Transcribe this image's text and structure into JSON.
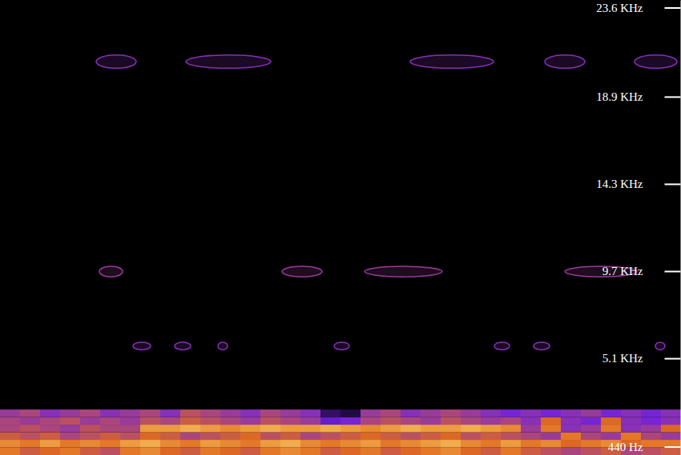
{
  "chart_data": {
    "type": "heatmap",
    "xlim": [
      0,
      850
    ],
    "ylim": [
      0,
      24000
    ],
    "yticks": [
      {
        "value": 23600,
        "label": "23.6 KHz"
      },
      {
        "value": 18900,
        "label": "18.9 KHz"
      },
      {
        "value": 14300,
        "label": "14.3 KHz"
      },
      {
        "value": 9700,
        "label": "9.7 KHz"
      },
      {
        "value": 5100,
        "label": "5.1 KHz"
      },
      {
        "value": 440,
        "label": "440 Hz"
      }
    ],
    "tick_labels": "y",
    "zlim": [
      0,
      1
    ],
    "xbins": [
      0,
      25,
      50,
      75,
      100,
      125,
      150,
      175,
      200,
      225,
      250,
      275,
      300,
      325,
      350,
      375,
      400,
      425,
      450,
      475,
      500,
      525,
      550,
      575,
      600,
      625,
      650,
      675,
      700,
      725,
      750,
      775,
      800,
      825,
      850
    ],
    "ybins": [
      0,
      400,
      800,
      1200,
      1600,
      2000,
      2400
    ],
    "cells": [
      [
        0.7,
        0.6,
        0.65,
        0.7,
        0.6,
        0.55,
        0.7,
        0.75,
        0.65,
        0.6,
        0.7,
        0.65,
        0.6,
        0.7,
        0.75,
        0.7,
        0.6,
        0.65,
        0.7,
        0.6,
        0.65,
        0.7,
        0.75,
        0.65,
        0.6,
        0.7,
        0.6,
        0.55,
        0.5,
        0.55,
        0.6,
        0.5,
        0.55,
        0.6
      ],
      [
        0.75,
        0.7,
        0.8,
        0.7,
        0.75,
        0.7,
        0.8,
        0.85,
        0.75,
        0.7,
        0.8,
        0.75,
        0.7,
        0.8,
        0.85,
        0.75,
        0.7,
        0.75,
        0.8,
        0.7,
        0.75,
        0.8,
        0.85,
        0.75,
        0.7,
        0.8,
        0.7,
        0.75,
        0.65,
        0.7,
        0.75,
        0.65,
        0.7,
        0.7
      ],
      [
        0.6,
        0.55,
        0.6,
        0.5,
        0.55,
        0.6,
        0.55,
        0.65,
        0.6,
        0.5,
        0.55,
        0.6,
        0.65,
        0.55,
        0.6,
        0.5,
        0.55,
        0.6,
        0.65,
        0.6,
        0.55,
        0.6,
        0.65,
        0.55,
        0.6,
        0.55,
        0.5,
        0.45,
        0.7,
        0.5,
        0.45,
        0.7,
        0.5,
        0.45
      ],
      [
        0.5,
        0.55,
        0.5,
        0.45,
        0.55,
        0.5,
        0.5,
        0.8,
        0.8,
        0.85,
        0.8,
        0.75,
        0.8,
        0.85,
        0.8,
        0.8,
        0.85,
        0.8,
        0.75,
        0.8,
        0.85,
        0.8,
        0.8,
        0.85,
        0.8,
        0.75,
        0.45,
        0.7,
        0.4,
        0.45,
        0.7,
        0.4,
        0.45,
        0.65
      ],
      [
        0.5,
        0.45,
        0.5,
        0.55,
        0.45,
        0.5,
        0.45,
        0.55,
        0.5,
        0.6,
        0.55,
        0.5,
        0.45,
        0.55,
        0.5,
        0.45,
        0.3,
        0.35,
        0.5,
        0.55,
        0.5,
        0.45,
        0.55,
        0.5,
        0.45,
        0.5,
        0.4,
        0.65,
        0.4,
        0.35,
        0.65,
        0.4,
        0.35,
        0.4
      ],
      [
        0.45,
        0.5,
        0.4,
        0.45,
        0.5,
        0.4,
        0.45,
        0.5,
        0.4,
        0.55,
        0.5,
        0.45,
        0.4,
        0.5,
        0.45,
        0.4,
        0.15,
        0.1,
        0.45,
        0.5,
        0.4,
        0.45,
        0.5,
        0.45,
        0.4,
        0.35,
        0.4,
        0.35,
        0.4,
        0.45,
        0.35,
        0.4,
        0.35,
        0.4
      ]
    ],
    "events": [
      {
        "t0": 120,
        "t1": 170,
        "f0": 20400,
        "f1": 21100,
        "level": 0.4
      },
      {
        "t0": 232,
        "t1": 338,
        "f0": 20400,
        "f1": 21100,
        "level": 0.4
      },
      {
        "t0": 512,
        "t1": 616,
        "f0": 20400,
        "f1": 21100,
        "level": 0.4
      },
      {
        "t0": 680,
        "t1": 730,
        "f0": 20400,
        "f1": 21100,
        "level": 0.4
      },
      {
        "t0": 792,
        "t1": 845,
        "f0": 20400,
        "f1": 21100,
        "level": 0.4
      },
      {
        "t0": 124,
        "t1": 153,
        "f0": 9400,
        "f1": 9950,
        "level": 0.45
      },
      {
        "t0": 352,
        "t1": 402,
        "f0": 9400,
        "f1": 9950,
        "level": 0.45
      },
      {
        "t0": 455,
        "t1": 552,
        "f0": 9400,
        "f1": 9950,
        "level": 0.45
      },
      {
        "t0": 705,
        "t1": 795,
        "f0": 9400,
        "f1": 9950,
        "level": 0.45
      },
      {
        "t0": 166,
        "t1": 188,
        "f0": 5550,
        "f1": 5950,
        "level": 0.4
      },
      {
        "t0": 218,
        "t1": 238,
        "f0": 5550,
        "f1": 5950,
        "level": 0.4
      },
      {
        "t0": 272,
        "t1": 284,
        "f0": 5550,
        "f1": 5950,
        "level": 0.4
      },
      {
        "t0": 417,
        "t1": 436,
        "f0": 5550,
        "f1": 5950,
        "level": 0.4
      },
      {
        "t0": 617,
        "t1": 636,
        "f0": 5550,
        "f1": 5950,
        "level": 0.4
      },
      {
        "t0": 666,
        "t1": 686,
        "f0": 5550,
        "f1": 5950,
        "level": 0.4
      },
      {
        "t0": 818,
        "t1": 830,
        "f0": 5550,
        "f1": 5950,
        "level": 0.4
      }
    ]
  }
}
